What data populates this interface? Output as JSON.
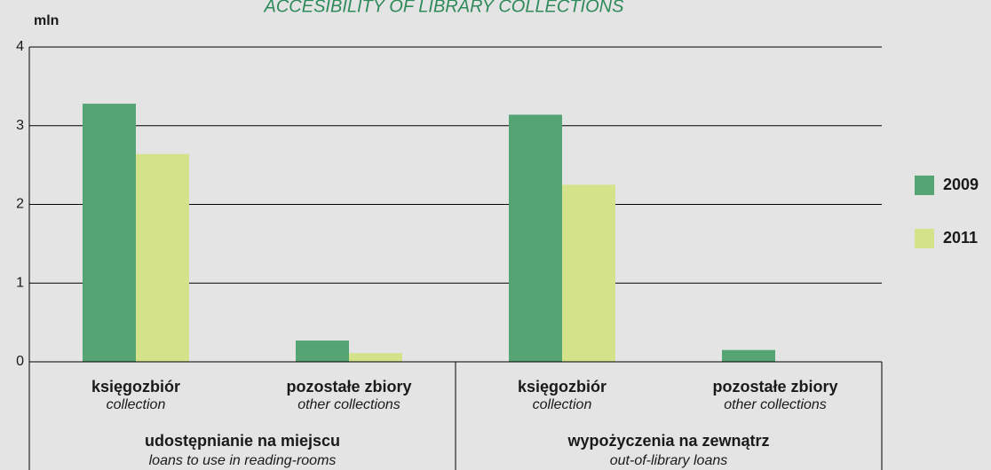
{
  "chart_data": {
    "type": "bar",
    "title": "ACCESIBILITY OF LIBRARY COLLECTIONS",
    "y_label": "mln",
    "categories": [
      "księgozbiór",
      "pozostałe zbiory",
      "księgozbiór",
      "pozostałe zbiory"
    ],
    "category_subtitles": [
      "collection",
      "other collections",
      "collection",
      "other collections"
    ],
    "groups": [
      {
        "label": "udostępnianie na miejscu",
        "sublabel": "loans to use in reading-rooms"
      },
      {
        "label": "wypożyczenia na zewnątrz",
        "sublabel": "out-of-library loans"
      }
    ],
    "series": [
      {
        "name": "2009",
        "color": "#55a474",
        "values": [
          3.28,
          0.27,
          3.14,
          0.15
        ]
      },
      {
        "name": "2011",
        "color": "#d4e38a",
        "values": [
          2.64,
          0.11,
          2.25,
          null
        ]
      }
    ],
    "ylim": [
      0,
      4
    ],
    "yticks": [
      0,
      1,
      2,
      3,
      4
    ],
    "grid": true,
    "legend": "right"
  }
}
